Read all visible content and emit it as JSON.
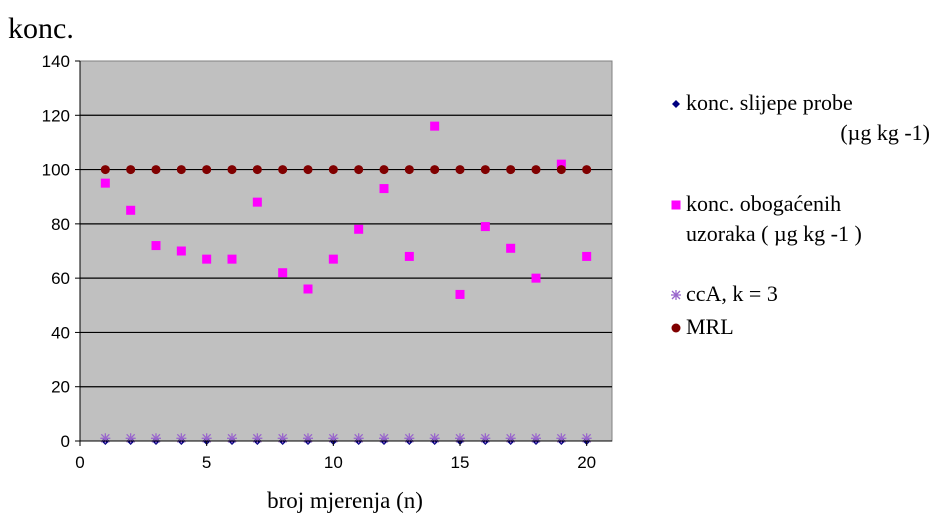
{
  "chart_data": {
    "type": "scatter",
    "title": "",
    "ylabel": "konc.",
    "xlabel": "broj mjerenja (n)",
    "xlim": [
      0,
      21
    ],
    "ylim": [
      0,
      140
    ],
    "xticks": [
      "0",
      "5",
      "10",
      "15",
      "20"
    ],
    "yticks": [
      "0",
      "20",
      "40",
      "60",
      "80",
      "100",
      "120",
      "140"
    ],
    "grid": "horizontal",
    "legend_position": "right",
    "series": [
      {
        "name": "konc. slijepe probe (µg kg -1)",
        "legend_lines": [
          "konc.  slijepe  probe",
          "(µg kg -1)"
        ],
        "marker": "diamond",
        "color": "#000080",
        "x": [
          1,
          2,
          3,
          4,
          5,
          6,
          7,
          8,
          9,
          10,
          11,
          12,
          13,
          14,
          15,
          16,
          17,
          18,
          19,
          20
        ],
        "values": [
          0,
          0,
          0,
          0,
          0,
          0,
          0,
          0,
          0,
          0,
          0,
          0,
          0,
          0,
          0,
          0,
          0,
          0,
          0,
          0
        ]
      },
      {
        "name": "konc. obogaćenih uzoraka ( µg kg -1 )",
        "legend_lines": [
          "konc. obogaćenih",
          "uzoraka (  µg kg -1 )"
        ],
        "marker": "square",
        "color": "#ff00ff",
        "x": [
          1,
          2,
          3,
          4,
          5,
          6,
          7,
          8,
          9,
          10,
          11,
          12,
          13,
          14,
          15,
          16,
          17,
          18,
          19,
          20
        ],
        "values": [
          95,
          85,
          72,
          70,
          67,
          67,
          88,
          62,
          56,
          67,
          78,
          93,
          68,
          116,
          54,
          79,
          71,
          60,
          102,
          68
        ]
      },
      {
        "name": "ccA, k = 3",
        "legend_lines": [
          "ccA, k = 3"
        ],
        "marker": "star",
        "color": "#9966cc",
        "x": [
          1,
          2,
          3,
          4,
          5,
          6,
          7,
          8,
          9,
          10,
          11,
          12,
          13,
          14,
          15,
          16,
          17,
          18,
          19,
          20
        ],
        "values": [
          1,
          1,
          1,
          1,
          1,
          1,
          1,
          1,
          1,
          1,
          1,
          1,
          1,
          1,
          1,
          1,
          1,
          1,
          1,
          1
        ]
      },
      {
        "name": "MRL",
        "legend_lines": [
          "MRL"
        ],
        "marker": "circle",
        "color": "#800000",
        "x": [
          1,
          2,
          3,
          4,
          5,
          6,
          7,
          8,
          9,
          10,
          11,
          12,
          13,
          14,
          15,
          16,
          17,
          18,
          19,
          20
        ],
        "values": [
          100,
          100,
          100,
          100,
          100,
          100,
          100,
          100,
          100,
          100,
          100,
          100,
          100,
          100,
          100,
          100,
          100,
          100,
          100,
          100
        ]
      }
    ],
    "colors": {
      "plot_background": "#c0c0c0",
      "gridline": "#000000"
    }
  }
}
